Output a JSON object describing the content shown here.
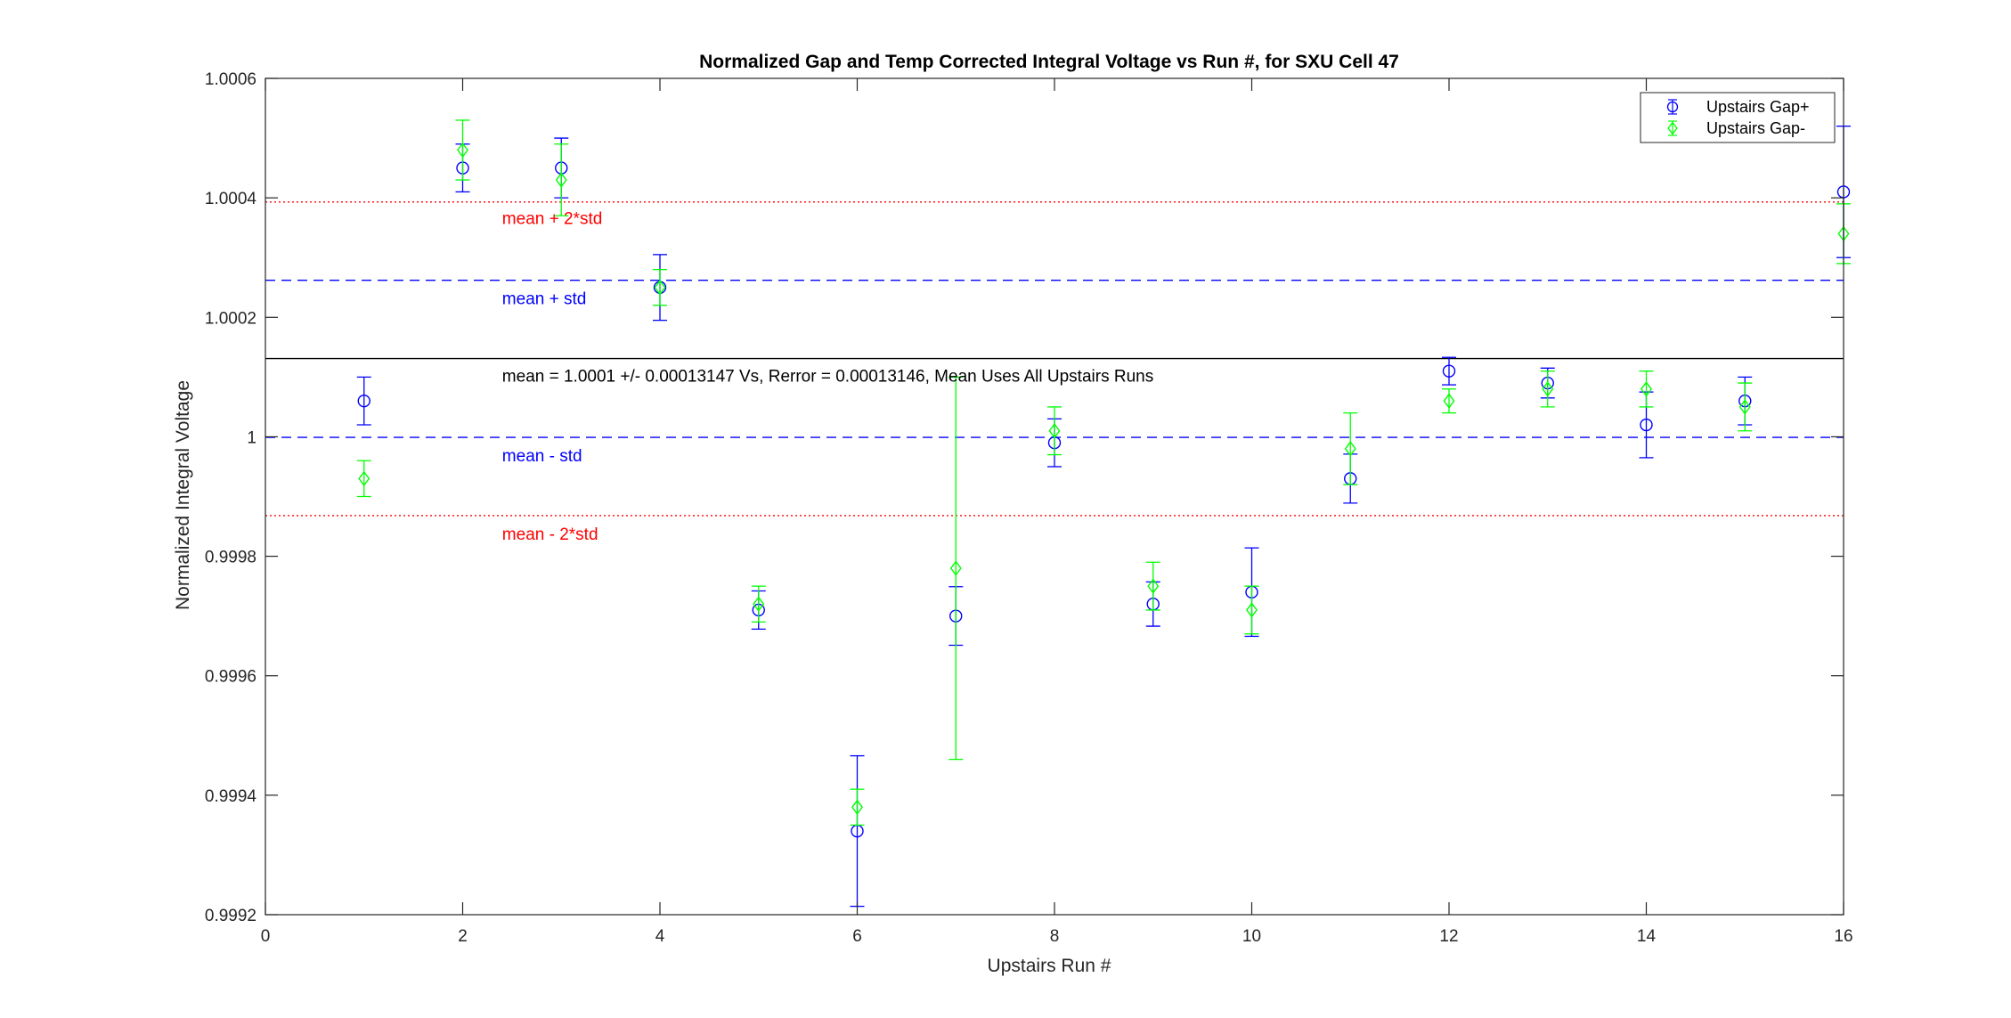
{
  "chart_data": {
    "type": "scatter",
    "title": "Normalized Gap and Temp Corrected Integral Voltage vs Run #, for SXU Cell 47",
    "xlabel": "Upstairs Run #",
    "ylabel": "Normalized Integral Voltage",
    "xlim": [
      0,
      16
    ],
    "ylim": [
      0.9992,
      1.0006
    ],
    "xticks": [
      0,
      2,
      4,
      6,
      8,
      10,
      12,
      14,
      16
    ],
    "xtick_labels": [
      "0",
      "2",
      "4",
      "6",
      "8",
      "10",
      "12",
      "14",
      "16"
    ],
    "yticks": [
      0.9992,
      0.9994,
      0.9996,
      0.9998,
      1.0,
      1.0002,
      1.0004,
      1.0006
    ],
    "ytick_labels": [
      "0.9992",
      "0.9994",
      "0.9996",
      "0.9998",
      "1",
      "1.0002",
      "1.0004",
      "1.0006"
    ],
    "grid": false,
    "legend_position": "top-right",
    "series": [
      {
        "name": "Upstairs Gap+",
        "marker": "circle",
        "color": "#0000ff",
        "x": [
          1,
          2,
          3,
          4,
          5,
          6,
          7,
          8,
          9,
          10,
          11,
          12,
          13,
          14,
          15,
          16
        ],
        "y": [
          1.00006,
          1.00045,
          1.00045,
          1.00025,
          0.99971,
          0.99934,
          0.9997,
          0.99999,
          0.99972,
          0.99974,
          0.99993,
          1.00011,
          1.00009,
          1.00002,
          1.00006,
          1.00041
        ],
        "err": [
          4e-05,
          4e-05,
          5e-05,
          5.5e-05,
          3.2e-05,
          0.000126,
          4.9e-05,
          4e-05,
          3.7e-05,
          7.4e-05,
          4.1e-05,
          2.3e-05,
          2.5e-05,
          5.5e-05,
          4e-05,
          0.00011
        ]
      },
      {
        "name": "Upstairs Gap-",
        "marker": "diamond",
        "color": "#00ff00",
        "x": [
          1,
          2,
          3,
          4,
          5,
          6,
          7,
          8,
          9,
          10,
          11,
          12,
          13,
          14,
          15,
          16
        ],
        "y": [
          0.99993,
          1.00048,
          1.00043,
          1.00025,
          0.99972,
          0.99938,
          0.99978,
          1.00001,
          0.99975,
          0.99971,
          0.99998,
          1.00006,
          1.00008,
          1.00008,
          1.00005,
          1.00034
        ],
        "err": [
          3e-05,
          5e-05,
          6e-05,
          3e-05,
          3e-05,
          3e-05,
          0.00032,
          4e-05,
          4e-05,
          4e-05,
          6e-05,
          2e-05,
          3e-05,
          3e-05,
          4e-05,
          5e-05
        ]
      }
    ],
    "reference_lines": [
      {
        "label": "mean + 2*std",
        "y": 1.000393,
        "style": "dotted",
        "color": "#ff0000"
      },
      {
        "label": "mean + std",
        "y": 1.000262,
        "style": "dashed",
        "color": "#0000ff"
      },
      {
        "label": "mean",
        "y": 1.000131,
        "style": "solid",
        "color": "#000000"
      },
      {
        "label": "mean - std",
        "y": 0.999999,
        "style": "dashed",
        "color": "#0000ff"
      },
      {
        "label": "mean - 2*std",
        "y": 0.999868,
        "style": "dotted",
        "color": "#ff0000"
      }
    ],
    "annotations": [
      {
        "text": "mean + 2*std",
        "x": 2.4,
        "y": 1.000356,
        "color": "#ff0000"
      },
      {
        "text": "mean + std",
        "x": 2.4,
        "y": 1.000222,
        "color": "#0000ff"
      },
      {
        "text": "mean = 1.0001 +/- 0.00013147 Vs, Rerror = 0.00013146, Mean Uses All Upstairs Runs",
        "x": 2.4,
        "y": 1.000092,
        "color": "#000000"
      },
      {
        "text": "mean - std",
        "x": 2.4,
        "y": 0.999959,
        "color": "#0000ff"
      },
      {
        "text": "mean - 2*std",
        "x": 2.4,
        "y": 0.999828,
        "color": "#ff0000"
      }
    ]
  }
}
